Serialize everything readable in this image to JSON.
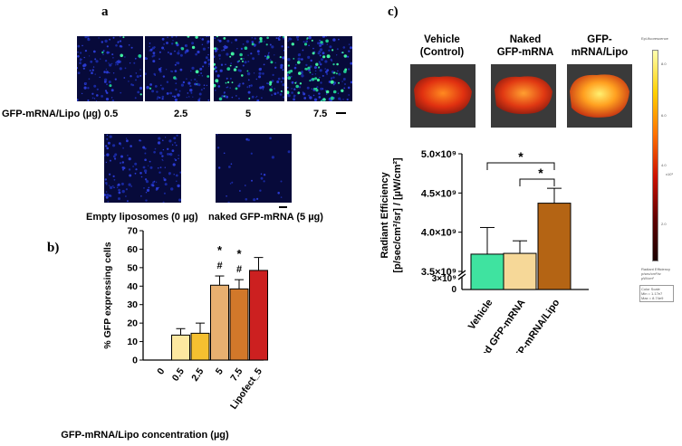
{
  "panels": {
    "a": "a",
    "b": "b)",
    "c": "c)"
  },
  "panel_a": {
    "row_label": "GFP-mRNA/Lipo (µg)",
    "doses": [
      "0.5",
      "2.5",
      "5",
      "7.5"
    ],
    "bottom_labels": [
      "Empty liposomes (0 µg)",
      "naked GFP-mRNA (5 µg)"
    ]
  },
  "panel_c_images": {
    "labels": [
      [
        "Vehicle",
        "(Control)"
      ],
      [
        "Naked",
        "GFP-mRNA"
      ],
      [
        "GFP-",
        "mRNA/Lipo"
      ]
    ]
  },
  "chart_data": [
    {
      "type": "bar",
      "categories": [
        "0",
        "0.5",
        "2.5",
        "5",
        "7.5",
        "Lipofect_5"
      ],
      "values": [
        0,
        13.5,
        14.5,
        40.5,
        38.5,
        48.5
      ],
      "errors": [
        0,
        3.5,
        5.5,
        5,
        5,
        7
      ],
      "colors": [
        "#ffffff",
        "#fde8a0",
        "#f5c030",
        "#e8b070",
        "#d2782a",
        "#cc2020"
      ],
      "annotations": [
        "",
        "",
        "",
        "* #",
        "* #",
        ""
      ],
      "ylabel": "% GFP expressing cells",
      "xlabel": "GFP-mRNA/Lipo concentration (µg)",
      "ylim": [
        0,
        70
      ],
      "yticks": [
        0,
        10,
        20,
        30,
        40,
        50,
        60,
        70
      ]
    },
    {
      "type": "bar",
      "categories": [
        "Vehicle",
        "Naked GFP-mRNA",
        "GFP-mRNA/Lipo"
      ],
      "values": [
        3720000000.0,
        3730000000.0,
        4370000000.0
      ],
      "errors": [
        340000000.0,
        160000000.0,
        190000000.0
      ],
      "colors": [
        "#3fe3a0",
        "#f6d898",
        "#b46414"
      ],
      "ylabel_line1": "Radiant Efficiency",
      "ylabel_line2": "[p/sec/cm²/sr] / [µW/cm²]",
      "yticks": [
        "5.0×10⁹",
        "4.5×10⁹",
        "4.0×10⁹",
        "3.5×10⁹",
        "3×10⁹",
        "0"
      ],
      "significance": [
        "*",
        "*"
      ]
    }
  ],
  "colorbar": {
    "title": "Epi-fluorescence",
    "ticks": [
      "8.0",
      "6.0",
      "4.0",
      "2.0"
    ],
    "unit": "x10⁹",
    "footer": [
      "Radiant Efficiency",
      "p/sec/cm²/sr",
      "µW/cm²"
    ],
    "box": [
      "Color Scale",
      "Min = 1.17e7",
      "Max = 8.74e9"
    ]
  }
}
